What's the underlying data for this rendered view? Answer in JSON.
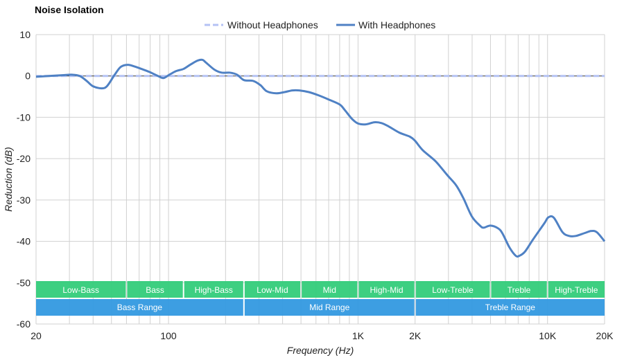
{
  "chart_data": {
    "type": "line",
    "title": "Noise Isolation",
    "xlabel": "Frequency (Hz)",
    "ylabel": "Reduction (dB)",
    "xscale": "log",
    "xlim": [
      20,
      20000
    ],
    "ylim": [
      -60,
      10
    ],
    "grid": true,
    "legend_placement": "top-center",
    "x_ticks": [
      {
        "value": 20,
        "label": "20"
      },
      {
        "value": 100,
        "label": "100"
      },
      {
        "value": 1000,
        "label": "1K"
      },
      {
        "value": 2000,
        "label": "2K"
      },
      {
        "value": 10000,
        "label": "10K"
      },
      {
        "value": 20000,
        "label": "20K"
      }
    ],
    "y_ticks": [
      10,
      0,
      -10,
      -20,
      -30,
      -40,
      -50,
      -60
    ],
    "series": [
      {
        "name": "Without Headphones",
        "style": "dashed",
        "color": "#b4c2f4",
        "x": [
          20,
          20000
        ],
        "y": [
          0,
          0
        ]
      },
      {
        "name": "With Headphones",
        "style": "solid",
        "color": "#4f81c4",
        "x": [
          20,
          28,
          31,
          34,
          37,
          40,
          44.5,
          47.5,
          52,
          56,
          61,
          66,
          72,
          79,
          88,
          94,
          101,
          110,
          120,
          130,
          142,
          151,
          158,
          175,
          191,
          211,
          230,
          250,
          280,
          305,
          330,
          370,
          410,
          450,
          490,
          550,
          620,
          700,
          800,
          850,
          930,
          1000,
          1100,
          1220,
          1330,
          1450,
          1650,
          1880,
          2000,
          2200,
          2560,
          2960,
          3300,
          3600,
          3990,
          4400,
          4600,
          5000,
          5500,
          5800,
          6300,
          6800,
          7100,
          7600,
          8400,
          9600,
          10100,
          10800,
          12000,
          13000,
          14100,
          15700,
          17000,
          18200,
          20000
        ],
        "y": [
          -0.2,
          0.2,
          0.3,
          0,
          -1.2,
          -2.5,
          -3,
          -2.4,
          0.3,
          2.2,
          2.7,
          2.3,
          1.7,
          1,
          0,
          -0.5,
          0.3,
          1.2,
          1.7,
          2.7,
          3.7,
          3.9,
          3.2,
          1.5,
          0.8,
          0.8,
          0.3,
          -1,
          -1.2,
          -2.2,
          -3.7,
          -4.2,
          -3.9,
          -3.5,
          -3.5,
          -3.9,
          -4.7,
          -5.7,
          -6.9,
          -8.2,
          -10.4,
          -11.5,
          -11.7,
          -11.2,
          -11.4,
          -12.2,
          -13.7,
          -14.7,
          -15.7,
          -18,
          -20.6,
          -24,
          -26.5,
          -29.6,
          -34,
          -36.2,
          -36.7,
          -36.2,
          -36.9,
          -38.2,
          -41.5,
          -43.5,
          -43.5,
          -42.5,
          -39.5,
          -35.7,
          -34.2,
          -34.3,
          -37.8,
          -38.7,
          -38.7,
          -38,
          -37.5,
          -37.8,
          -40
        ]
      }
    ],
    "bands": [
      {
        "label": "Low-Bass",
        "from": 20,
        "to": 60
      },
      {
        "label": "Bass",
        "from": 60,
        "to": 120
      },
      {
        "label": "High-Bass",
        "from": 120,
        "to": 250
      },
      {
        "label": "Low-Mid",
        "from": 250,
        "to": 500
      },
      {
        "label": "Mid",
        "from": 500,
        "to": 1000
      },
      {
        "label": "High-Mid",
        "from": 1000,
        "to": 2000
      },
      {
        "label": "Low-Treble",
        "from": 2000,
        "to": 5000
      },
      {
        "label": "Treble",
        "from": 5000,
        "to": 10000
      },
      {
        "label": "High-Treble",
        "from": 10000,
        "to": 20000
      }
    ],
    "ranges": [
      {
        "label": "Bass Range",
        "from": 20,
        "to": 250
      },
      {
        "label": "Mid Range",
        "from": 250,
        "to": 2000
      },
      {
        "label": "Treble Range",
        "from": 2000,
        "to": 20000
      }
    ],
    "band_color": "#33cc7a",
    "range_color": "#3399e0"
  }
}
